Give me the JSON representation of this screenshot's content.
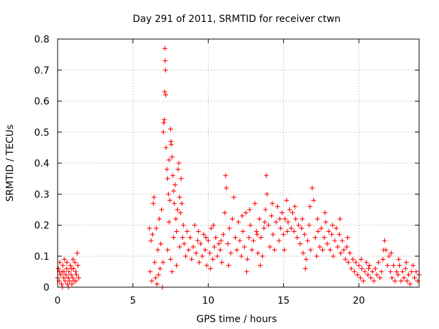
{
  "chart_data": {
    "type": "scatter",
    "title": "Day 291 of 2011, SRMTID for receiver ctwn",
    "xlabel": "GPS time / hours",
    "ylabel": "SRMTID / TECUs",
    "xlim": [
      0,
      24
    ],
    "ylim": [
      0,
      0.8
    ],
    "xticks": [
      0,
      5,
      10,
      15,
      20
    ],
    "yticks": [
      0,
      0.1,
      0.2,
      0.3,
      0.4,
      0.5,
      0.6,
      0.7,
      0.8
    ],
    "xtick_labels": [
      "0",
      "5",
      "10",
      "15",
      "20"
    ],
    "ytick_labels": [
      "0",
      "0.1",
      "0.2",
      "0.3",
      "0.4",
      "0.5",
      "0.6",
      "0.7",
      "0.8"
    ],
    "grid": true,
    "marker": "+",
    "series": [
      {
        "name": "SRMTID",
        "color": "#ff0000",
        "points": [
          [
            0.0,
            0.03
          ],
          [
            0.05,
            0.06
          ],
          [
            0.1,
            0.02
          ],
          [
            0.15,
            0.08
          ],
          [
            0.2,
            0.04
          ],
          [
            0.25,
            0.01
          ],
          [
            0.3,
            0.05
          ],
          [
            0.35,
            0.07
          ],
          [
            0.4,
            0.03
          ],
          [
            0.45,
            0.09
          ],
          [
            0.5,
            0.02
          ],
          [
            0.55,
            0.04
          ],
          [
            0.6,
            0.06
          ],
          [
            0.65,
            0.01
          ],
          [
            0.7,
            0.03
          ],
          [
            0.75,
            0.05
          ],
          [
            0.8,
            0.02
          ],
          [
            0.85,
            0.07
          ],
          [
            0.9,
            0.04
          ],
          [
            0.95,
            0.01
          ],
          [
            1.0,
            0.03
          ],
          [
            1.05,
            0.06
          ],
          [
            1.1,
            0.02
          ],
          [
            1.15,
            0.08
          ],
          [
            1.2,
            0.05
          ],
          [
            1.25,
            0.04
          ],
          [
            1.3,
            0.11
          ],
          [
            1.35,
            0.07
          ],
          [
            1.4,
            0.03
          ],
          [
            0.12,
            0.05
          ],
          [
            0.32,
            0.0
          ],
          [
            0.62,
            0.08
          ],
          [
            0.92,
            0.06
          ],
          [
            1.22,
            0.02
          ],
          [
            0.42,
            0.05
          ],
          [
            0.72,
            0.0
          ],
          [
            1.02,
            0.09
          ],
          [
            6.1,
            0.19
          ],
          [
            6.15,
            0.05
          ],
          [
            6.2,
            0.15
          ],
          [
            6.25,
            0.02
          ],
          [
            6.3,
            0.17
          ],
          [
            6.35,
            0.27
          ],
          [
            6.4,
            0.29
          ],
          [
            6.45,
            0.08
          ],
          [
            6.5,
            0.03
          ],
          [
            6.55,
            0.19
          ],
          [
            6.6,
            0.01
          ],
          [
            6.65,
            0.12
          ],
          [
            6.7,
            0.04
          ],
          [
            6.75,
            0.22
          ],
          [
            6.8,
            0.06
          ],
          [
            6.85,
            0.14
          ],
          [
            6.9,
            0.25
          ],
          [
            6.95,
            0.0
          ],
          [
            7.0,
            0.08
          ],
          [
            7.02,
            0.5
          ],
          [
            7.05,
            0.53
          ],
          [
            7.08,
            0.54
          ],
          [
            7.1,
            0.63
          ],
          [
            7.12,
            0.77
          ],
          [
            7.14,
            0.73
          ],
          [
            7.16,
            0.7
          ],
          [
            7.18,
            0.62
          ],
          [
            7.2,
            0.45
          ],
          [
            7.25,
            0.38
          ],
          [
            7.3,
            0.35
          ],
          [
            7.35,
            0.3
          ],
          [
            7.4,
            0.41
          ],
          [
            7.45,
            0.28
          ],
          [
            7.5,
            0.51
          ],
          [
            7.52,
            0.47
          ],
          [
            7.55,
            0.46
          ],
          [
            7.6,
            0.42
          ],
          [
            7.65,
            0.36
          ],
          [
            7.7,
            0.31
          ],
          [
            7.75,
            0.27
          ],
          [
            7.8,
            0.33
          ],
          [
            7.85,
            0.22
          ],
          [
            7.9,
            0.18
          ],
          [
            7.95,
            0.25
          ],
          [
            8.0,
            0.38
          ],
          [
            8.05,
            0.4
          ],
          [
            8.1,
            0.29
          ],
          [
            8.15,
            0.24
          ],
          [
            8.2,
            0.35
          ],
          [
            8.25,
            0.27
          ],
          [
            8.3,
            0.16
          ],
          [
            8.35,
            0.2
          ],
          [
            7.3,
            0.12
          ],
          [
            7.5,
            0.09
          ],
          [
            7.7,
            0.16
          ],
          [
            7.9,
            0.07
          ],
          [
            8.1,
            0.13
          ],
          [
            7.4,
            0.21
          ],
          [
            7.6,
            0.05
          ],
          [
            8.4,
            0.14
          ],
          [
            8.5,
            0.1
          ],
          [
            8.6,
            0.18
          ],
          [
            8.7,
            0.12
          ],
          [
            8.8,
            0.16
          ],
          [
            8.9,
            0.09
          ],
          [
            9.0,
            0.13
          ],
          [
            9.1,
            0.2
          ],
          [
            9.2,
            0.11
          ],
          [
            9.3,
            0.15
          ],
          [
            9.4,
            0.08
          ],
          [
            9.5,
            0.14
          ],
          [
            9.6,
            0.1
          ],
          [
            9.7,
            0.17
          ],
          [
            9.8,
            0.12
          ],
          [
            9.9,
            0.07
          ],
          [
            10.0,
            0.15
          ],
          [
            10.1,
            0.11
          ],
          [
            10.2,
            0.19
          ],
          [
            10.3,
            0.09
          ],
          [
            10.4,
            0.13
          ],
          [
            10.5,
            0.16
          ],
          [
            10.6,
            0.1
          ],
          [
            10.7,
            0.14
          ],
          [
            10.8,
            0.12
          ],
          [
            10.9,
            0.08
          ],
          [
            11.0,
            0.17
          ],
          [
            11.1,
            0.24
          ],
          [
            11.15,
            0.36
          ],
          [
            11.2,
            0.32
          ],
          [
            11.3,
            0.14
          ],
          [
            11.4,
            0.19
          ],
          [
            11.5,
            0.11
          ],
          [
            11.6,
            0.22
          ],
          [
            11.7,
            0.29
          ],
          [
            11.8,
            0.16
          ],
          [
            11.9,
            0.12
          ],
          [
            12.0,
            0.21
          ],
          [
            12.1,
            0.15
          ],
          [
            12.2,
            0.1
          ],
          [
            12.3,
            0.18
          ],
          [
            12.4,
            0.13
          ],
          [
            12.5,
            0.24
          ],
          [
            12.6,
            0.09
          ],
          [
            12.7,
            0.16
          ],
          [
            12.8,
            0.2
          ],
          [
            12.9,
            0.12
          ],
          [
            13.0,
            0.15
          ],
          [
            13.1,
            0.27
          ],
          [
            13.2,
            0.18
          ],
          [
            13.3,
            0.11
          ],
          [
            13.4,
            0.22
          ],
          [
            13.5,
            0.16
          ],
          [
            13.6,
            0.1
          ],
          [
            13.7,
            0.19
          ],
          [
            13.8,
            0.25
          ],
          [
            13.85,
            0.36
          ],
          [
            13.9,
            0.3
          ],
          [
            14.0,
            0.2
          ],
          [
            14.1,
            0.13
          ],
          [
            14.2,
            0.23
          ],
          [
            14.3,
            0.17
          ],
          [
            14.4,
            0.12
          ],
          [
            14.5,
            0.21
          ],
          [
            14.6,
            0.26
          ],
          [
            14.7,
            0.15
          ],
          [
            14.8,
            0.19
          ],
          [
            14.9,
            0.24
          ],
          [
            15.0,
            0.17
          ],
          [
            15.1,
            0.22
          ],
          [
            15.2,
            0.28
          ],
          [
            15.3,
            0.21
          ],
          [
            15.4,
            0.25
          ],
          [
            15.5,
            0.19
          ],
          [
            15.6,
            0.24
          ],
          [
            15.7,
            0.18
          ],
          [
            15.8,
            0.22
          ],
          [
            15.9,
            0.16
          ],
          [
            16.0,
            0.2
          ],
          [
            16.1,
            0.14
          ],
          [
            16.2,
            0.19
          ],
          [
            16.3,
            0.11
          ],
          [
            16.4,
            0.17
          ],
          [
            16.5,
            0.09
          ],
          [
            16.6,
            0.15
          ],
          [
            16.7,
            0.2
          ],
          [
            16.8,
            0.12
          ],
          [
            16.9,
            0.32
          ],
          [
            17.0,
            0.28
          ],
          [
            17.1,
            0.16
          ],
          [
            17.2,
            0.1
          ],
          [
            17.3,
            0.18
          ],
          [
            17.4,
            0.13
          ],
          [
            17.5,
            0.19
          ],
          [
            17.6,
            0.12
          ],
          [
            17.7,
            0.16
          ],
          [
            17.8,
            0.21
          ],
          [
            17.9,
            0.14
          ],
          [
            18.0,
            0.18
          ],
          [
            18.1,
            0.12
          ],
          [
            18.2,
            0.17
          ],
          [
            18.3,
            0.1
          ],
          [
            18.4,
            0.15
          ],
          [
            18.5,
            0.19
          ],
          [
            18.6,
            0.13
          ],
          [
            18.7,
            0.17
          ],
          [
            18.8,
            0.11
          ],
          [
            18.9,
            0.15
          ],
          [
            19.0,
            0.12
          ],
          [
            19.1,
            0.09
          ],
          [
            19.2,
            0.13
          ],
          [
            19.3,
            0.08
          ],
          [
            19.4,
            0.11
          ],
          [
            19.5,
            0.06
          ],
          [
            19.6,
            0.09
          ],
          [
            19.7,
            0.05
          ],
          [
            19.8,
            0.08
          ],
          [
            19.9,
            0.04
          ],
          [
            20.0,
            0.07
          ],
          [
            20.1,
            0.03
          ],
          [
            20.2,
            0.06
          ],
          [
            20.3,
            0.02
          ],
          [
            20.4,
            0.05
          ],
          [
            20.5,
            0.08
          ],
          [
            20.6,
            0.04
          ],
          [
            20.7,
            0.07
          ],
          [
            20.8,
            0.03
          ],
          [
            20.9,
            0.05
          ],
          [
            21.0,
            0.02
          ],
          [
            21.1,
            0.06
          ],
          [
            21.2,
            0.04
          ],
          [
            21.3,
            0.08
          ],
          [
            21.4,
            0.03
          ],
          [
            21.5,
            0.05
          ],
          [
            21.6,
            0.09
          ],
          [
            21.7,
            0.15
          ],
          [
            21.8,
            0.12
          ],
          [
            21.9,
            0.07
          ],
          [
            22.0,
            0.1
          ],
          [
            22.1,
            0.05
          ],
          [
            22.2,
            0.03
          ],
          [
            22.3,
            0.07
          ],
          [
            22.4,
            0.02
          ],
          [
            22.5,
            0.05
          ],
          [
            22.6,
            0.04
          ],
          [
            22.7,
            0.07
          ],
          [
            22.8,
            0.02
          ],
          [
            22.9,
            0.05
          ],
          [
            23.0,
            0.03
          ],
          [
            23.1,
            0.06
          ],
          [
            23.2,
            0.02
          ],
          [
            23.3,
            0.04
          ],
          [
            23.4,
            0.01
          ],
          [
            23.5,
            0.05
          ],
          [
            23.6,
            0.07
          ],
          [
            23.7,
            0.03
          ],
          [
            23.8,
            0.05
          ],
          [
            23.9,
            0.02
          ],
          [
            24.0,
            0.04
          ],
          [
            9.35,
            0.18
          ],
          [
            9.85,
            0.16
          ],
          [
            10.35,
            0.2
          ],
          [
            10.85,
            0.15
          ],
          [
            12.25,
            0.23
          ],
          [
            12.75,
            0.25
          ],
          [
            13.25,
            0.17
          ],
          [
            13.75,
            0.21
          ],
          [
            14.25,
            0.27
          ],
          [
            14.75,
            0.22
          ],
          [
            15.25,
            0.18
          ],
          [
            15.75,
            0.26
          ],
          [
            16.25,
            0.22
          ],
          [
            16.75,
            0.26
          ],
          [
            17.25,
            0.22
          ],
          [
            17.75,
            0.24
          ],
          [
            18.25,
            0.2
          ],
          [
            18.75,
            0.22
          ],
          [
            19.25,
            0.16
          ],
          [
            22.15,
            0.11
          ],
          [
            22.65,
            0.09
          ],
          [
            23.15,
            0.08
          ],
          [
            20.15,
            0.09
          ],
          [
            20.65,
            0.06
          ],
          [
            21.65,
            0.12
          ],
          [
            10.15,
            0.06
          ],
          [
            11.35,
            0.07
          ],
          [
            12.55,
            0.05
          ],
          [
            13.45,
            0.07
          ],
          [
            15.05,
            0.12
          ],
          [
            16.45,
            0.06
          ]
        ]
      }
    ]
  }
}
